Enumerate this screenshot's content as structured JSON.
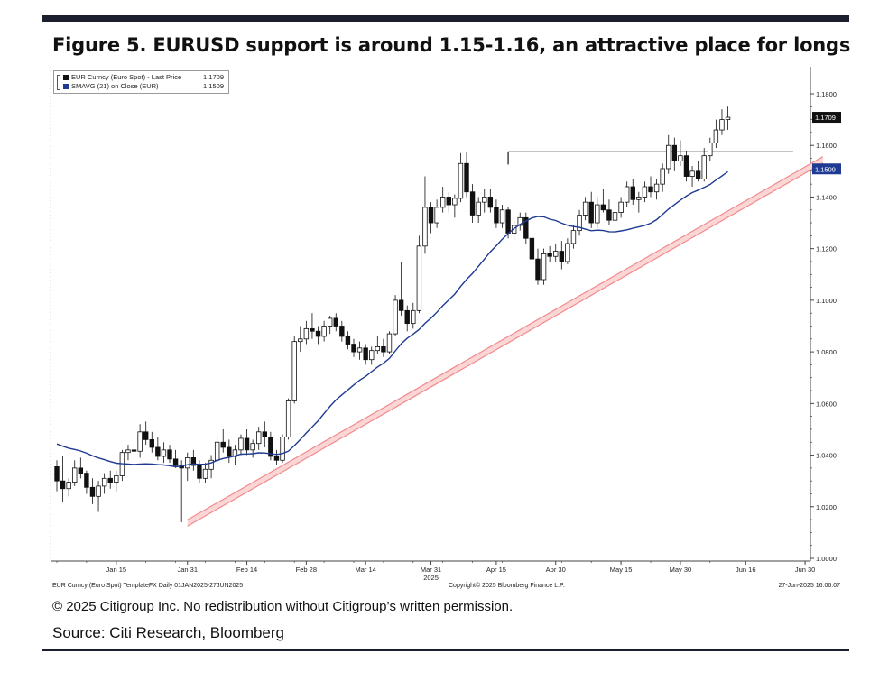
{
  "figure": {
    "title": "Figure 5. EURUSD support is around 1.15-1.16, an attractive place for longs",
    "copyright": "© 2025 Citigroup Inc. No redistribution without Citigroup’s written permission.",
    "source": "Source: Citi Research, Bloomberg"
  },
  "footer": {
    "left": "EUR Curncy (Euro Spot) TemplateFX  Daily 01JAN2025-27JUN2025",
    "center": "Copyright© 2025 Bloomberg Finance L.P.",
    "right": "27-Jun-2025 16:06:07"
  },
  "legend": {
    "items": [
      {
        "label": "EUR Curncy (Euro Spot) - Last Price",
        "value": "1.1709",
        "color": "#111111"
      },
      {
        "label": "SMAVG (21)  on Close (EUR)",
        "value": "1.1509",
        "color": "#1f3a93"
      }
    ]
  },
  "chart_data": {
    "type": "candlestick",
    "yticks": [
      "1.1800",
      "1.1600",
      "1.1400",
      "1.1200",
      "1.1000",
      "1.0800",
      "1.0600",
      "1.0400",
      "1.0200",
      "1.0000"
    ],
    "ylim": [
      1.0,
      1.185
    ],
    "xticks": [
      {
        "label": "Jan 15",
        "day": 10
      },
      {
        "label": "Jan 31",
        "day": 22
      },
      {
        "label": "Feb 14",
        "day": 32
      },
      {
        "label": "Feb 28",
        "day": 42
      },
      {
        "label": "Mar 14",
        "day": 52
      },
      {
        "label": "Mar 31",
        "day": 63
      },
      {
        "label": "Apr 15",
        "day": 74
      },
      {
        "label": "Apr 30",
        "day": 84
      },
      {
        "label": "May 15",
        "day": 95
      },
      {
        "label": "May 30",
        "day": 105
      },
      {
        "label": "Jun 16",
        "day": 116
      },
      {
        "label": "Jun 30",
        "day": 126
      }
    ],
    "year_label": "2025",
    "last_price": {
      "value": 1.1709,
      "label": "1.1709",
      "color": "#111111"
    },
    "sma_last": {
      "value": 1.1509,
      "label": "1.1509",
      "color": "#1f3a93"
    },
    "resistance_line": {
      "y": 1.1575,
      "from_day": 76,
      "to_day": 124,
      "color": "#111111"
    },
    "trend_channel": {
      "from": [
        22,
        1.0125
      ],
      "to": [
        129,
        1.1532
      ],
      "color": "#f28b8b"
    },
    "candles": [
      [
        1.0355,
        1.038,
        1.026,
        1.03
      ],
      [
        1.03,
        1.0395,
        1.022,
        1.027
      ],
      [
        1.027,
        1.031,
        1.024,
        1.0295
      ],
      [
        1.0295,
        1.038,
        1.028,
        1.035
      ],
      [
        1.035,
        1.039,
        1.031,
        1.033
      ],
      [
        1.033,
        1.034,
        1.025,
        1.0275
      ],
      [
        1.0275,
        1.031,
        1.021,
        1.024
      ],
      [
        1.024,
        1.03,
        1.018,
        1.028
      ],
      [
        1.028,
        1.033,
        1.025,
        1.031
      ],
      [
        1.031,
        1.034,
        1.027,
        1.0295
      ],
      [
        1.0295,
        1.034,
        1.026,
        1.032
      ],
      [
        1.032,
        1.042,
        1.03,
        1.041
      ],
      [
        1.041,
        1.044,
        1.038,
        1.042
      ],
      [
        1.042,
        1.045,
        1.04,
        1.0415
      ],
      [
        1.0415,
        1.052,
        1.039,
        1.049
      ],
      [
        1.049,
        1.053,
        1.044,
        1.046
      ],
      [
        1.046,
        1.049,
        1.041,
        1.043
      ],
      [
        1.043,
        1.047,
        1.038,
        1.0395
      ],
      [
        1.0395,
        1.045,
        1.037,
        1.042
      ],
      [
        1.042,
        1.044,
        1.037,
        1.0385
      ],
      [
        1.0385,
        1.042,
        1.035,
        1.036
      ],
      [
        1.036,
        1.038,
        1.014,
        1.035
      ],
      [
        1.035,
        1.041,
        1.03,
        1.039
      ],
      [
        1.039,
        1.042,
        1.034,
        1.036
      ],
      [
        1.036,
        1.038,
        1.029,
        1.031
      ],
      [
        1.031,
        1.037,
        1.029,
        1.0345
      ],
      [
        1.0345,
        1.04,
        1.031,
        1.038
      ],
      [
        1.038,
        1.047,
        1.036,
        1.045
      ],
      [
        1.045,
        1.05,
        1.041,
        1.043
      ],
      [
        1.043,
        1.046,
        1.037,
        1.0395
      ],
      [
        1.0395,
        1.044,
        1.036,
        1.042
      ],
      [
        1.042,
        1.048,
        1.04,
        1.0465
      ],
      [
        1.0465,
        1.05,
        1.04,
        1.042
      ],
      [
        1.042,
        1.046,
        1.039,
        1.0445
      ],
      [
        1.0445,
        1.051,
        1.042,
        1.049
      ],
      [
        1.049,
        1.053,
        1.043,
        1.047
      ],
      [
        1.047,
        1.049,
        1.038,
        1.0395
      ],
      [
        1.0395,
        1.042,
        1.036,
        1.038
      ],
      [
        1.038,
        1.048,
        1.037,
        1.047
      ],
      [
        1.047,
        1.062,
        1.046,
        1.061
      ],
      [
        1.061,
        1.086,
        1.06,
        1.084
      ],
      [
        1.084,
        1.09,
        1.08,
        1.085
      ],
      [
        1.085,
        1.092,
        1.083,
        1.089
      ],
      [
        1.089,
        1.095,
        1.085,
        1.088
      ],
      [
        1.088,
        1.09,
        1.083,
        1.086
      ],
      [
        1.086,
        1.092,
        1.084,
        1.09
      ],
      [
        1.09,
        1.094,
        1.087,
        1.093
      ],
      [
        1.093,
        1.095,
        1.088,
        1.09
      ],
      [
        1.09,
        1.092,
        1.084,
        1.086
      ],
      [
        1.086,
        1.088,
        1.081,
        1.083
      ],
      [
        1.083,
        1.085,
        1.078,
        1.08
      ],
      [
        1.08,
        1.084,
        1.077,
        1.0815
      ],
      [
        1.0815,
        1.083,
        1.075,
        1.077
      ],
      [
        1.077,
        1.082,
        1.075,
        1.0805
      ],
      [
        1.0805,
        1.086,
        1.079,
        1.082
      ],
      [
        1.082,
        1.085,
        1.078,
        1.08
      ],
      [
        1.08,
        1.088,
        1.079,
        1.087
      ],
      [
        1.087,
        1.102,
        1.086,
        1.1
      ],
      [
        1.1,
        1.115,
        1.094,
        1.096
      ],
      [
        1.096,
        1.098,
        1.088,
        1.091
      ],
      [
        1.091,
        1.099,
        1.089,
        1.096
      ],
      [
        1.096,
        1.125,
        1.095,
        1.121
      ],
      [
        1.121,
        1.148,
        1.118,
        1.136
      ],
      [
        1.136,
        1.138,
        1.126,
        1.13
      ],
      [
        1.13,
        1.139,
        1.128,
        1.136
      ],
      [
        1.136,
        1.144,
        1.134,
        1.14
      ],
      [
        1.14,
        1.142,
        1.134,
        1.137
      ],
      [
        1.137,
        1.141,
        1.132,
        1.1395
      ],
      [
        1.1395,
        1.157,
        1.138,
        1.153
      ],
      [
        1.153,
        1.1575,
        1.14,
        1.142
      ],
      [
        1.142,
        1.145,
        1.13,
        1.133
      ],
      [
        1.133,
        1.14,
        1.13,
        1.138
      ],
      [
        1.138,
        1.143,
        1.134,
        1.14
      ],
      [
        1.14,
        1.143,
        1.134,
        1.136
      ],
      [
        1.136,
        1.139,
        1.128,
        1.13
      ],
      [
        1.13,
        1.137,
        1.128,
        1.135
      ],
      [
        1.135,
        1.136,
        1.124,
        1.126
      ],
      [
        1.126,
        1.131,
        1.123,
        1.129
      ],
      [
        1.129,
        1.134,
        1.127,
        1.132
      ],
      [
        1.132,
        1.134,
        1.122,
        1.124
      ],
      [
        1.124,
        1.126,
        1.113,
        1.116
      ],
      [
        1.116,
        1.12,
        1.106,
        1.108
      ],
      [
        1.108,
        1.12,
        1.106,
        1.118
      ],
      [
        1.118,
        1.121,
        1.115,
        1.117
      ],
      [
        1.117,
        1.122,
        1.115,
        1.119
      ],
      [
        1.119,
        1.123,
        1.112,
        1.115
      ],
      [
        1.115,
        1.124,
        1.114,
        1.122
      ],
      [
        1.122,
        1.129,
        1.12,
        1.127
      ],
      [
        1.127,
        1.135,
        1.125,
        1.133
      ],
      [
        1.133,
        1.14,
        1.131,
        1.138
      ],
      [
        1.138,
        1.142,
        1.128,
        1.13
      ],
      [
        1.13,
        1.14,
        1.128,
        1.137
      ],
      [
        1.137,
        1.143,
        1.134,
        1.135
      ],
      [
        1.135,
        1.139,
        1.129,
        1.131
      ],
      [
        1.131,
        1.136,
        1.121,
        1.134
      ],
      [
        1.134,
        1.14,
        1.132,
        1.138
      ],
      [
        1.138,
        1.146,
        1.136,
        1.144
      ],
      [
        1.144,
        1.147,
        1.137,
        1.139
      ],
      [
        1.139,
        1.142,
        1.134,
        1.14
      ],
      [
        1.14,
        1.146,
        1.138,
        1.144
      ],
      [
        1.144,
        1.148,
        1.14,
        1.142
      ],
      [
        1.142,
        1.147,
        1.139,
        1.145
      ],
      [
        1.145,
        1.153,
        1.142,
        1.151
      ],
      [
        1.151,
        1.164,
        1.149,
        1.16
      ],
      [
        1.16,
        1.163,
        1.15,
        1.154
      ],
      [
        1.154,
        1.162,
        1.152,
        1.156
      ],
      [
        1.156,
        1.158,
        1.146,
        1.148
      ],
      [
        1.148,
        1.152,
        1.144,
        1.15
      ],
      [
        1.15,
        1.154,
        1.146,
        1.147
      ],
      [
        1.147,
        1.159,
        1.146,
        1.156
      ],
      [
        1.156,
        1.163,
        1.154,
        1.161
      ],
      [
        1.161,
        1.17,
        1.159,
        1.166
      ],
      [
        1.166,
        1.174,
        1.164,
        1.17
      ],
      [
        1.17,
        1.175,
        1.166,
        1.1709
      ]
    ]
  }
}
